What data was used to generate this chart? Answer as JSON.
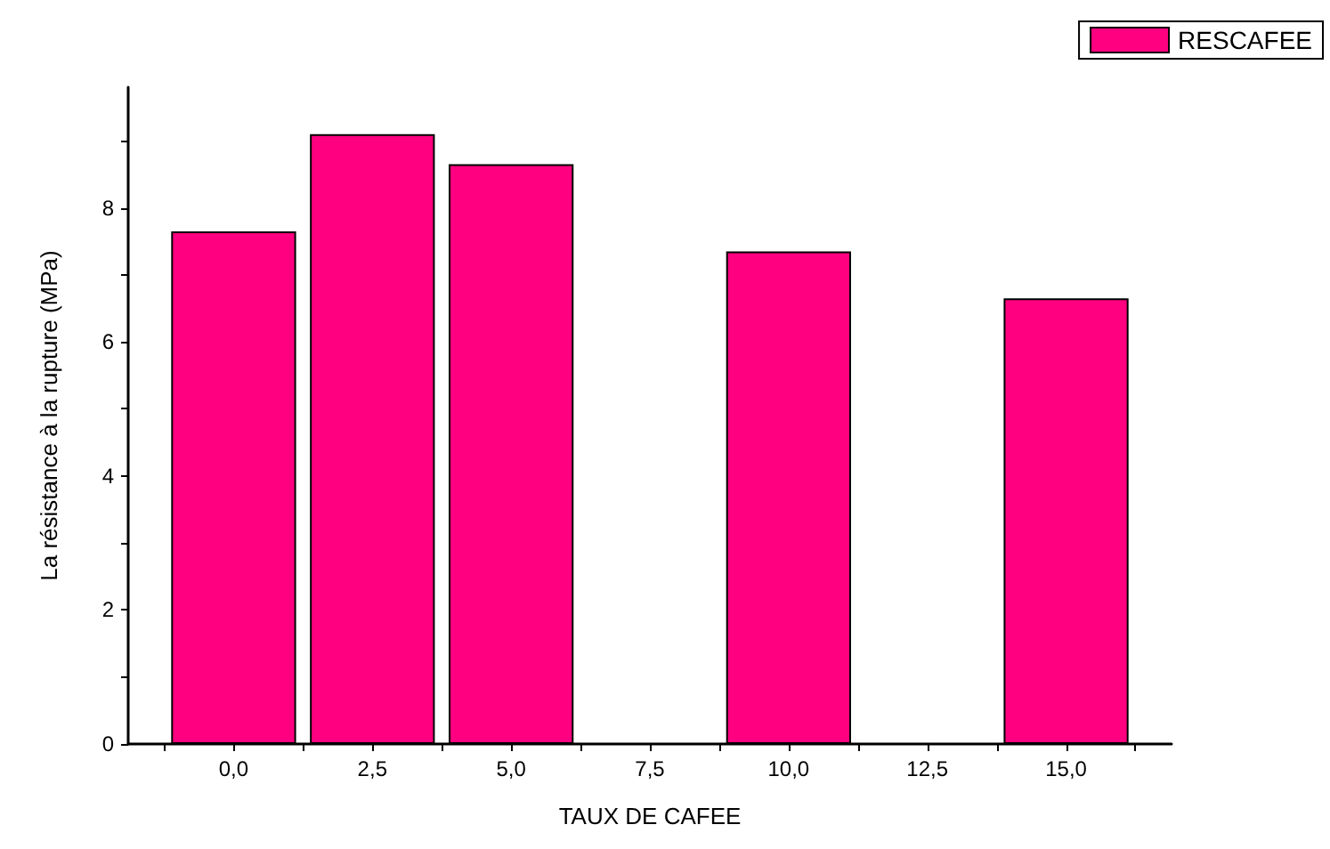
{
  "chart_data": {
    "type": "bar",
    "xlabel": "TAUX DE CAFEE",
    "ylabel": "La résistance à la rupture (MPa)",
    "x": [
      0,
      2.5,
      5,
      10,
      15
    ],
    "series": [
      {
        "name": "RESCAFEE",
        "color": "#ff0080",
        "values": [
          7.65,
          9.1,
          8.65,
          7.35,
          6.65
        ]
      }
    ],
    "xlim": [
      -1.9,
      16.9
    ],
    "xticks": [
      {
        "value": -1.25,
        "label": null
      },
      {
        "value": 0,
        "label": "0,0"
      },
      {
        "value": 1.25,
        "label": null
      },
      {
        "value": 2.5,
        "label": "2,5"
      },
      {
        "value": 3.75,
        "label": null
      },
      {
        "value": 5,
        "label": "5,0"
      },
      {
        "value": 6.25,
        "label": null
      },
      {
        "value": 7.5,
        "label": "7,5"
      },
      {
        "value": 8.75,
        "label": null
      },
      {
        "value": 10,
        "label": "10,0"
      },
      {
        "value": 11.25,
        "label": null
      },
      {
        "value": 12.5,
        "label": "12,5"
      },
      {
        "value": 13.75,
        "label": null
      },
      {
        "value": 15,
        "label": "15,0"
      },
      {
        "value": 16.25,
        "label": null
      }
    ],
    "ylim": [
      0,
      9.8
    ],
    "yticks": [
      0,
      {
        "value": 1,
        "label": null
      },
      2,
      {
        "value": 3,
        "label": null
      },
      4,
      {
        "value": 5,
        "label": null
      },
      6,
      {
        "value": 7,
        "label": null
      },
      8,
      {
        "value": 9,
        "label": null
      }
    ],
    "grid": false,
    "legend": "top right"
  }
}
